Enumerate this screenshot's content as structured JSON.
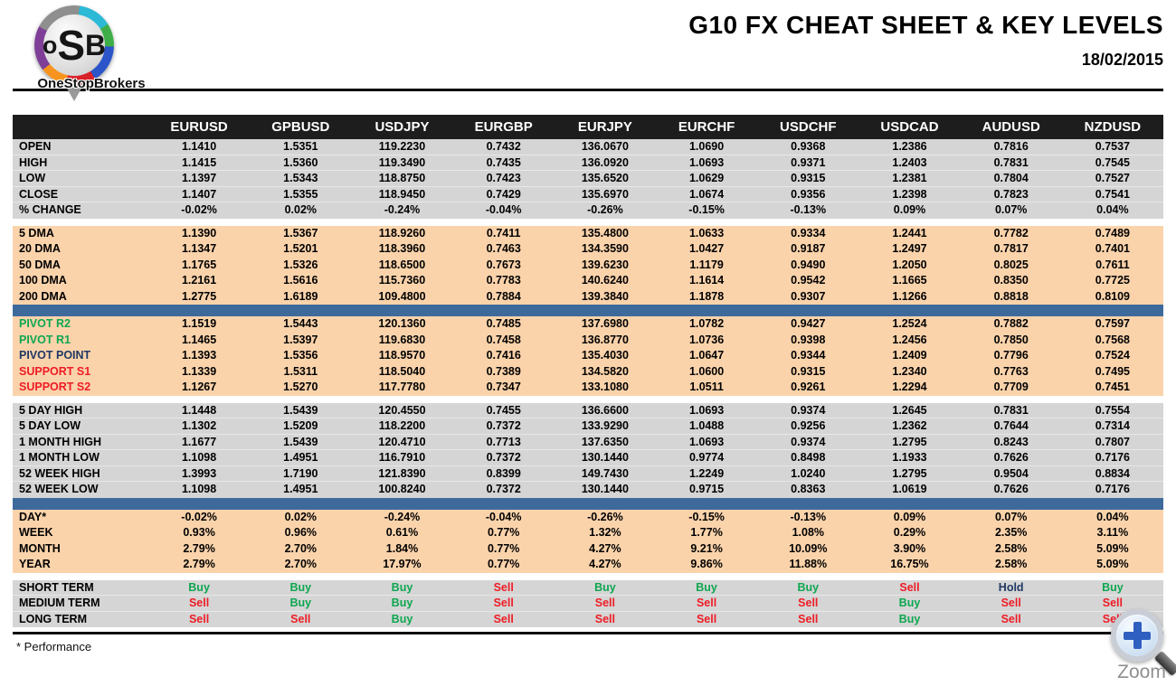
{
  "logo": {
    "mark": "oSB",
    "brand": "OneStopBrokers"
  },
  "header": {
    "title": "G10 FX CHEAT SHEET & KEY LEVELS",
    "date": "18/02/2015"
  },
  "colors": {
    "header_bg": "#1d1d1d",
    "gray": "#d5d5d5",
    "peach": "#fbd3ab",
    "blue_bar": "#3e6a9b",
    "green": "#0da750",
    "red": "#ee1c25",
    "navy": "#1f3864"
  },
  "signal_colors": {
    "Buy": "green",
    "Sell": "red",
    "Hold": "navy"
  },
  "table": {
    "pairs": [
      "EURUSD",
      "GPBUSD",
      "USDJPY",
      "EURGBP",
      "EURJPY",
      "EURCHF",
      "USDCHF",
      "USDCAD",
      "AUDUSD",
      "NZDUSD"
    ],
    "sections": [
      {
        "bg": "gray",
        "after": "gap",
        "rows": [
          {
            "label": "OPEN",
            "values": [
              "1.1410",
              "1.5351",
              "119.2230",
              "0.7432",
              "136.0670",
              "1.0690",
              "0.9368",
              "1.2386",
              "0.7816",
              "0.7537"
            ]
          },
          {
            "label": "HIGH",
            "values": [
              "1.1415",
              "1.5360",
              "119.3490",
              "0.7435",
              "136.0920",
              "1.0693",
              "0.9371",
              "1.2403",
              "0.7831",
              "0.7545"
            ]
          },
          {
            "label": "LOW",
            "values": [
              "1.1397",
              "1.5343",
              "118.8750",
              "0.7423",
              "135.6520",
              "1.0629",
              "0.9315",
              "1.2381",
              "0.7804",
              "0.7527"
            ]
          },
          {
            "label": "CLOSE",
            "values": [
              "1.1407",
              "1.5355",
              "118.9450",
              "0.7429",
              "135.6970",
              "1.0674",
              "0.9356",
              "1.2398",
              "0.7823",
              "0.7541"
            ]
          },
          {
            "label": "% CHANGE",
            "values": [
              "-0.02%",
              "0.02%",
              "-0.24%",
              "-0.04%",
              "-0.26%",
              "-0.15%",
              "-0.13%",
              "0.09%",
              "0.07%",
              "0.04%"
            ]
          }
        ]
      },
      {
        "bg": "peach",
        "after": "blue",
        "rows": [
          {
            "label": "5 DMA",
            "values": [
              "1.1390",
              "1.5367",
              "118.9260",
              "0.7411",
              "135.4800",
              "1.0633",
              "0.9334",
              "1.2441",
              "0.7782",
              "0.7489"
            ]
          },
          {
            "label": "20 DMA",
            "values": [
              "1.1347",
              "1.5201",
              "118.3960",
              "0.7463",
              "134.3590",
              "1.0427",
              "0.9187",
              "1.2497",
              "0.7817",
              "0.7401"
            ]
          },
          {
            "label": "50 DMA",
            "values": [
              "1.1765",
              "1.5326",
              "118.6500",
              "0.7673",
              "139.6230",
              "1.1179",
              "0.9490",
              "1.2050",
              "0.8025",
              "0.7611"
            ]
          },
          {
            "label": "100 DMA",
            "values": [
              "1.2161",
              "1.5616",
              "115.7360",
              "0.7783",
              "140.6240",
              "1.1614",
              "0.9542",
              "1.1665",
              "0.8350",
              "0.7725"
            ]
          },
          {
            "label": "200 DMA",
            "values": [
              "1.2775",
              "1.6189",
              "109.4800",
              "0.7884",
              "139.3840",
              "1.1878",
              "0.9307",
              "1.1266",
              "0.8818",
              "0.8109"
            ]
          }
        ]
      },
      {
        "bg": "peach",
        "after": "gap",
        "rows": [
          {
            "label": "PIVOT R2",
            "label_color": "green",
            "values": [
              "1.1519",
              "1.5443",
              "120.1360",
              "0.7485",
              "137.6980",
              "1.0782",
              "0.9427",
              "1.2524",
              "0.7882",
              "0.7597"
            ]
          },
          {
            "label": "PIVOT R1",
            "label_color": "green",
            "values": [
              "1.1465",
              "1.5397",
              "119.6830",
              "0.7458",
              "136.8770",
              "1.0736",
              "0.9398",
              "1.2456",
              "0.7850",
              "0.7568"
            ]
          },
          {
            "label": "PIVOT POINT",
            "label_color": "navy",
            "values": [
              "1.1393",
              "1.5356",
              "118.9570",
              "0.7416",
              "135.4030",
              "1.0647",
              "0.9344",
              "1.2409",
              "0.7796",
              "0.7524"
            ]
          },
          {
            "label": "SUPPORT S1",
            "label_color": "red",
            "values": [
              "1.1339",
              "1.5311",
              "118.5040",
              "0.7389",
              "134.5820",
              "1.0600",
              "0.9315",
              "1.2340",
              "0.7763",
              "0.7495"
            ]
          },
          {
            "label": "SUPPORT S2",
            "label_color": "red",
            "values": [
              "1.1267",
              "1.5270",
              "117.7780",
              "0.7347",
              "133.1080",
              "1.0511",
              "0.9261",
              "1.2294",
              "0.7709",
              "0.7451"
            ]
          }
        ]
      },
      {
        "bg": "gray",
        "after": "blue",
        "rows": [
          {
            "label": "5 DAY HIGH",
            "values": [
              "1.1448",
              "1.5439",
              "120.4550",
              "0.7455",
              "136.6600",
              "1.0693",
              "0.9374",
              "1.2645",
              "0.7831",
              "0.7554"
            ]
          },
          {
            "label": "5 DAY LOW",
            "values": [
              "1.1302",
              "1.5209",
              "118.2200",
              "0.7372",
              "133.9290",
              "1.0488",
              "0.9256",
              "1.2362",
              "0.7644",
              "0.7314"
            ]
          },
          {
            "label": "1 MONTH HIGH",
            "values": [
              "1.1677",
              "1.5439",
              "120.4710",
              "0.7713",
              "137.6350",
              "1.0693",
              "0.9374",
              "1.2795",
              "0.8243",
              "0.7807"
            ]
          },
          {
            "label": "1 MONTH LOW",
            "values": [
              "1.1098",
              "1.4951",
              "116.7910",
              "0.7372",
              "130.1440",
              "0.9774",
              "0.8498",
              "1.1933",
              "0.7626",
              "0.7176"
            ]
          },
          {
            "label": "52 WEEK HIGH",
            "values": [
              "1.3993",
              "1.7190",
              "121.8390",
              "0.8399",
              "149.7430",
              "1.2249",
              "1.0240",
              "1.2795",
              "0.9504",
              "0.8834"
            ]
          },
          {
            "label": "52 WEEK LOW",
            "values": [
              "1.1098",
              "1.4951",
              "100.8240",
              "0.7372",
              "130.1440",
              "0.9715",
              "0.8363",
              "1.0619",
              "0.7626",
              "0.7176"
            ]
          }
        ]
      },
      {
        "bg": "peach",
        "after": "gap",
        "rows": [
          {
            "label": "DAY*",
            "values": [
              "-0.02%",
              "0.02%",
              "-0.24%",
              "-0.04%",
              "-0.26%",
              "-0.15%",
              "-0.13%",
              "0.09%",
              "0.07%",
              "0.04%"
            ]
          },
          {
            "label": "WEEK",
            "values": [
              "0.93%",
              "0.96%",
              "0.61%",
              "0.77%",
              "1.32%",
              "1.77%",
              "1.08%",
              "0.29%",
              "2.35%",
              "3.11%"
            ]
          },
          {
            "label": "MONTH",
            "values": [
              "2.79%",
              "2.70%",
              "1.84%",
              "0.77%",
              "4.27%",
              "9.21%",
              "10.09%",
              "3.90%",
              "2.58%",
              "5.09%"
            ]
          },
          {
            "label": "YEAR",
            "values": [
              "2.79%",
              "2.70%",
              "17.97%",
              "0.77%",
              "4.27%",
              "9.86%",
              "11.88%",
              "16.75%",
              "2.58%",
              "5.09%"
            ]
          }
        ]
      },
      {
        "bg": "gray",
        "after": null,
        "rows": [
          {
            "label": "SHORT TERM",
            "signals": [
              "Buy",
              "Buy",
              "Buy",
              "Sell",
              "Buy",
              "Buy",
              "Buy",
              "Sell",
              "Hold",
              "Buy"
            ]
          },
          {
            "label": "MEDIUM TERM",
            "signals": [
              "Sell",
              "Buy",
              "Buy",
              "Sell",
              "Sell",
              "Sell",
              "Sell",
              "Buy",
              "Sell",
              "Sell"
            ]
          },
          {
            "label": "LONG TERM",
            "signals": [
              "Sell",
              "Sell",
              "Buy",
              "Sell",
              "Sell",
              "Sell",
              "Sell",
              "Buy",
              "Sell",
              "Sell"
            ]
          }
        ]
      }
    ]
  },
  "footer": {
    "note": "* Performance"
  },
  "zoom_widget": {
    "label": "Zoom",
    "icon": "magnifier-plus-icon"
  }
}
